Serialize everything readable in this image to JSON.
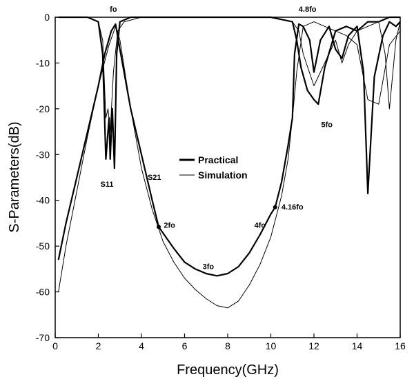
{
  "chart_data": {
    "type": "line",
    "title": "",
    "xlabel": "Frequency(GHz)",
    "ylabel": "S-Parameters(dB)",
    "xlim": [
      0,
      16
    ],
    "ylim": [
      -70,
      0
    ],
    "xticks": [
      0,
      2,
      4,
      6,
      8,
      10,
      12,
      14,
      16
    ],
    "yticks": [
      0,
      -10,
      -20,
      -30,
      -40,
      -50,
      -60,
      -70
    ],
    "grid": false,
    "legend_position": "center",
    "colors": {
      "axis": "#000000",
      "practical": "#000000",
      "simulation": "#000000"
    },
    "series": [
      {
        "name": "Practical",
        "style": "thick",
        "traces": [
          {
            "label": "S21",
            "x": [
              0.15,
              0.5,
              1.0,
              1.5,
              2.0,
              2.3,
              2.6,
              2.8,
              3.0,
              3.5,
              4.0,
              4.5,
              4.8,
              5.5,
              6.0,
              6.5,
              7.0,
              7.5,
              8.0,
              8.5,
              9.0,
              9.5,
              10.0,
              10.2,
              10.5,
              10.8,
              11.0,
              11.1,
              11.3,
              11.5,
              11.8,
              12.0,
              12.3,
              12.7,
              13.0,
              13.3,
              13.6,
              14.0,
              14.3,
              14.5,
              14.8,
              15.2,
              15.5,
              15.8,
              16.0
            ],
            "y": [
              -53,
              -45,
              -35,
              -25,
              -15,
              -8,
              -3,
              -1.5,
              -7,
              -20,
              -30,
              -40,
              -45.8,
              -50.5,
              -53.5,
              -55,
              -56,
              -56.5,
              -56,
              -54.5,
              -51.5,
              -47.5,
              -43,
              -41.5,
              -36,
              -28,
              -22,
              -8,
              -1.5,
              -2,
              -5,
              -12,
              -5,
              -2,
              -7,
              -9,
              -4,
              -2,
              -12,
              -38.5,
              -13,
              -4,
              -1,
              -2,
              -1
            ]
          },
          {
            "label": "S11",
            "x": [
              0.15,
              1.5,
              2.0,
              2.2,
              2.35,
              2.5,
              2.55,
              2.65,
              2.75,
              2.85,
              3.0,
              3.5,
              6.0,
              10.0,
              11.0,
              11.2,
              11.4,
              11.7,
              12.0,
              12.2,
              12.5,
              13.0,
              13.5,
              14.0,
              14.5,
              15.0,
              15.5,
              16.0
            ],
            "y": [
              0,
              0,
              -1,
              -8,
              -31,
              -22,
              -31,
              -20,
              -33,
              -8,
              -1,
              0,
              0,
              0,
              -1,
              -5,
              -11,
              -16,
              -18,
              -19,
              -11,
              -3,
              -2,
              -3,
              -1,
              -1,
              0,
              0
            ]
          }
        ]
      },
      {
        "name": "Simulation",
        "style": "thin",
        "traces": [
          {
            "label": "S21",
            "x": [
              0.15,
              0.5,
              1.0,
              1.5,
              2.0,
              2.5,
              2.8,
              3.0,
              3.5,
              4.0,
              4.5,
              5.0,
              5.5,
              6.0,
              6.5,
              7.0,
              7.5,
              8.0,
              8.5,
              9.0,
              9.5,
              10.0,
              10.5,
              10.8,
              11.0,
              11.2,
              11.5,
              12.0,
              12.5,
              13.0,
              13.5,
              14.0,
              14.5,
              15.0,
              15.5,
              16.0
            ],
            "y": [
              -60,
              -50,
              -38,
              -26,
              -15,
              -6,
              -2,
              -5,
              -20,
              -33,
              -42,
              -49,
              -53.5,
              -57,
              -59.5,
              -61.5,
              -63,
              -63.5,
              -62,
              -58.5,
              -54,
              -48,
              -39,
              -31,
              -22,
              -12,
              -2,
              -1,
              -2,
              -3,
              -4,
              -6,
              -18,
              -19,
              -6,
              -3
            ]
          },
          {
            "label": "S11",
            "x": [
              0.15,
              1.5,
              2.0,
              2.2,
              2.35,
              2.45,
              2.55,
              2.7,
              2.9,
              3.2,
              4.0,
              10.0,
              11.0,
              11.3,
              11.5,
              12.0,
              12.5,
              13.0,
              13.3,
              13.6,
              14.0,
              14.5,
              15.0,
              15.3,
              15.5,
              15.8,
              16.0
            ],
            "y": [
              0,
              0,
              -1,
              -5,
              -22,
              -20,
              -25,
              -12,
              -3,
              -1,
              0,
              0,
              -1,
              -3,
              -8,
              -15,
              -10,
              -5,
              -10,
              -6,
              -3,
              -2,
              -1,
              -8,
              -20,
              -5,
              -1
            ]
          }
        ]
      }
    ],
    "annotations": [
      {
        "text": "fo",
        "x": 2.7,
        "y": 1.2
      },
      {
        "text": "4.8fo",
        "x": 11.7,
        "y": 1.2
      },
      {
        "text": "5fo",
        "x": 12.6,
        "y": -24
      },
      {
        "text": "S11",
        "x": 2.4,
        "y": -37
      },
      {
        "text": "S21",
        "x": 4.6,
        "y": -35.5
      },
      {
        "text": "2fo",
        "x": 5.3,
        "y": -46
      },
      {
        "text": "3fo",
        "x": 7.1,
        "y": -55
      },
      {
        "text": "4fo",
        "x": 9.5,
        "y": -46
      },
      {
        "text": "4.16fo",
        "x": 11.0,
        "y": -42
      }
    ],
    "markers": [
      {
        "x": 4.8,
        "y": -45.8
      },
      {
        "x": 10.2,
        "y": -41.5
      }
    ]
  }
}
